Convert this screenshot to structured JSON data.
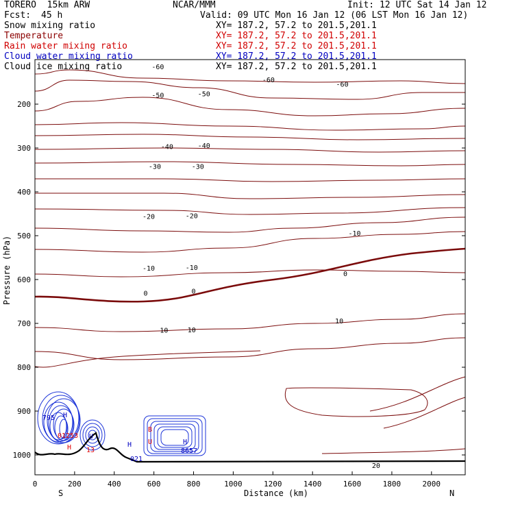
{
  "header": {
    "model": "TORERO  15km ARW",
    "center": "NCAR/MMM",
    "init": "Init: 12 UTC Sat 14 Jan 12",
    "fcst_label": "Fcst:",
    "fcst_value": "45 h",
    "valid": "Valid: 09 UTC Mon 16 Jan 12 (06 LST Mon 16 Jan 12)"
  },
  "legend": [
    {
      "label": "Snow mixing ratio",
      "xy": "XY= 187.2, 57.2 to 201.5,201.1",
      "color": "#000000"
    },
    {
      "label": "Temperature",
      "xy": "XY= 187.2, 57.2 to 201.5,201.1",
      "color": "#8b0000"
    },
    {
      "label": "Rain water mixing ratio",
      "xy": "XY= 187.2, 57.2 to 201.5,201.1",
      "color": "#e00000"
    },
    {
      "label": "Cloud water mixing ratio",
      "xy": "XY= 187.2, 57.2 to 201.5,201.1",
      "color": "#0000c0"
    },
    {
      "label": "Cloud ice mixing ratio",
      "xy": "XY= 187.2, 57.2 to 201.5,201.1",
      "color": "#000000"
    }
  ],
  "chart_data": {
    "type": "cross-section contour",
    "xlabel": "Distance (km)",
    "ylabel": "Pressure (hPa)",
    "x_ticks": [
      0,
      200,
      400,
      600,
      800,
      1000,
      1200,
      1400,
      1600,
      1800,
      2000
    ],
    "x_range": [
      0,
      2170
    ],
    "y_ticks": [
      200,
      300,
      400,
      500,
      600,
      700,
      800,
      900,
      1000
    ],
    "y_range": [
      100,
      1050
    ],
    "x_end_labels": {
      "left": "S",
      "right": "N"
    },
    "temperature_contour_interval": 5,
    "temperature_labels": [
      {
        "x": 200,
        "p": 120,
        "t": -60
      },
      {
        "x": 380,
        "p": 150,
        "t": -60
      },
      {
        "x": 500,
        "p": 160,
        "t": -60
      },
      {
        "x": 200,
        "p": 185,
        "t": -50
      },
      {
        "x": 275,
        "p": 182,
        "t": -50
      },
      {
        "x": 215,
        "p": 302,
        "t": -40
      },
      {
        "x": 275,
        "p": 300,
        "t": -40
      },
      {
        "x": 195,
        "p": 348,
        "t": -30
      },
      {
        "x": 265,
        "p": 348,
        "t": -30
      },
      {
        "x": 185,
        "p": 462,
        "t": -20
      },
      {
        "x": 255,
        "p": 460,
        "t": -20
      },
      {
        "x": 185,
        "p": 580,
        "t": -10
      },
      {
        "x": 255,
        "p": 578,
        "t": -10
      },
      {
        "x": 520,
        "p": 500,
        "t": -10
      },
      {
        "x": 180,
        "p": 637,
        "t": 0
      },
      {
        "x": 258,
        "p": 632,
        "t": 0
      },
      {
        "x": 505,
        "p": 592,
        "t": 0
      },
      {
        "x": 210,
        "p": 721,
        "t": 10
      },
      {
        "x": 255,
        "p": 720,
        "t": 10
      },
      {
        "x": 495,
        "p": 700,
        "t": 10
      },
      {
        "x": 555,
        "p": 1030,
        "t": 20
      }
    ],
    "field_labels": [
      {
        "text": "795",
        "color": "#0000c0"
      },
      {
        "text": "H",
        "color": "#0000c0"
      },
      {
        "text": "01253",
        "color": "#e00000"
      },
      {
        "text": "H",
        "color": "#e00000"
      },
      {
        "text": "13",
        "color": "#e00000"
      },
      {
        "text": "021",
        "color": "#0000c0"
      },
      {
        "text": "H",
        "color": "#0000c0"
      },
      {
        "text": "B",
        "color": "#e00000"
      },
      {
        "text": "H",
        "color": "#0000c0"
      },
      {
        "text": "8657",
        "color": "#0000c0"
      },
      {
        "text": "U",
        "color": "#e00000"
      },
      {
        "text": "U",
        "color": "#0000c0"
      }
    ]
  },
  "colors": {
    "temperature": "#7a0a0a",
    "cloud_water": "#1b33d8",
    "rain_water": "#d01010",
    "terrain": "#000000"
  }
}
